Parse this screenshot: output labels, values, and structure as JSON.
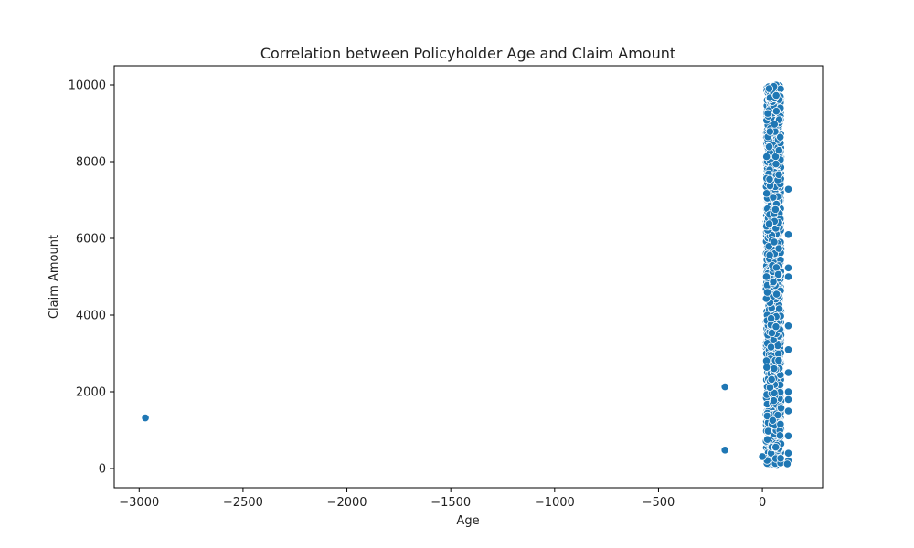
{
  "chart_data": {
    "type": "scatter",
    "title": "Correlation between Policyholder Age and Claim Amount",
    "xlabel": "Age",
    "ylabel": "Claim Amount",
    "xlim": [
      -3120,
      290
    ],
    "ylim": [
      -500,
      10500
    ],
    "xticks": [
      -3000,
      -2500,
      -2000,
      -1500,
      -1000,
      -500,
      0
    ],
    "yticks": [
      0,
      2000,
      4000,
      6000,
      8000,
      10000
    ],
    "grid": false,
    "color": "#1f77b4",
    "cluster": {
      "x_range": [
        18,
        90
      ],
      "y_range": [
        100,
        10000
      ],
      "description": "dense band of thousands of points"
    },
    "points": [
      {
        "x": -2970,
        "y": 1320
      },
      {
        "x": -180,
        "y": 2130
      },
      {
        "x": -180,
        "y": 480
      },
      {
        "x": 0,
        "y": 310
      },
      {
        "x": 125,
        "y": 7280
      },
      {
        "x": 125,
        "y": 6100
      },
      {
        "x": 125,
        "y": 5230
      },
      {
        "x": 125,
        "y": 5000
      },
      {
        "x": 125,
        "y": 3720
      },
      {
        "x": 125,
        "y": 3100
      },
      {
        "x": 125,
        "y": 2500
      },
      {
        "x": 125,
        "y": 2000
      },
      {
        "x": 125,
        "y": 1800
      },
      {
        "x": 125,
        "y": 1500
      },
      {
        "x": 125,
        "y": 850
      },
      {
        "x": 125,
        "y": 400
      },
      {
        "x": 125,
        "y": 200
      },
      {
        "x": 120,
        "y": 120
      }
    ]
  }
}
